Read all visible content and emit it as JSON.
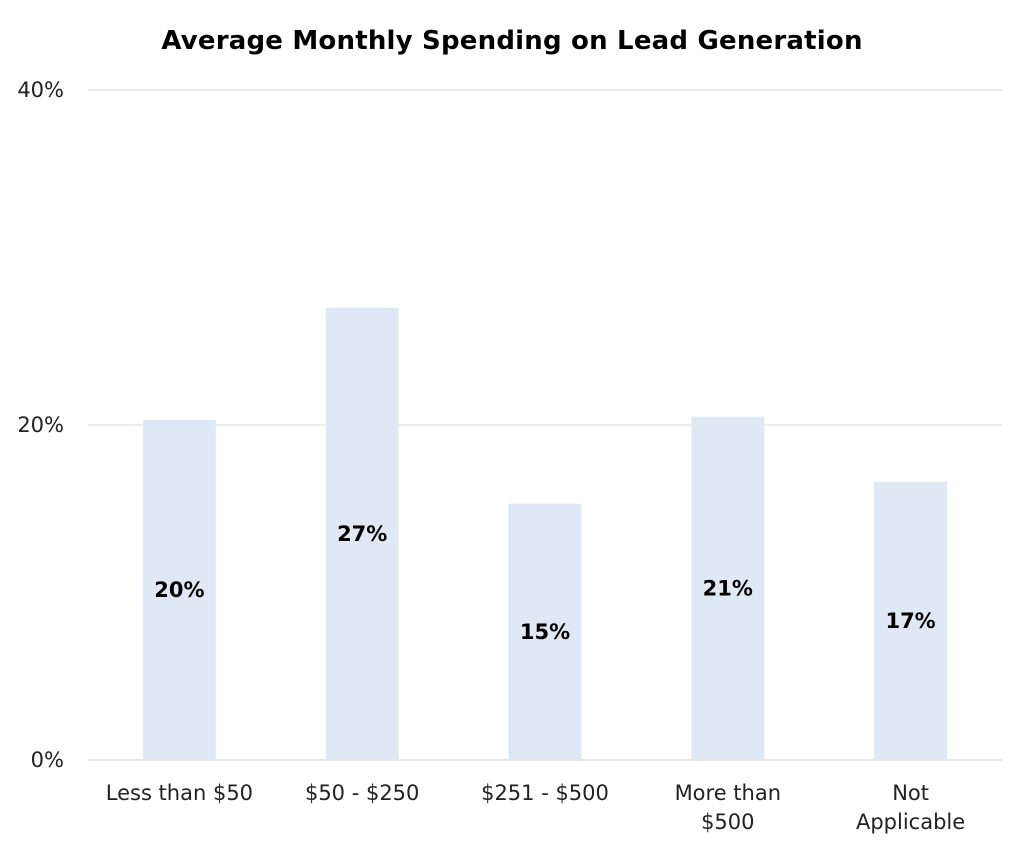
{
  "chart_data": {
    "type": "bar",
    "title": "Average Monthly Spending on Lead Generation",
    "categories": [
      "Less than $50",
      "$50 - $250",
      "$251 - $500",
      "More than $500",
      "Not Applicable"
    ],
    "category_lines": [
      [
        "Less than $50"
      ],
      [
        "$50 - $250"
      ],
      [
        "$251 - $500"
      ],
      [
        "More than",
        "$500"
      ],
      [
        "Not",
        "Applicable"
      ]
    ],
    "values": [
      20.3,
      27.0,
      15.3,
      20.5,
      16.6
    ],
    "data_labels": [
      "20%",
      "27%",
      "15%",
      "21%",
      "17%"
    ],
    "xlabel": "",
    "ylabel": "",
    "ylim": [
      0,
      40
    ],
    "yticks": [
      0,
      20,
      40
    ],
    "ytick_labels": [
      "0%",
      "20%",
      "40%"
    ],
    "grid": true,
    "legend": "none"
  },
  "colors": {
    "bar": "#dfe9f5",
    "grid": "#d9d9d9",
    "axis": "#cfcfcf"
  }
}
